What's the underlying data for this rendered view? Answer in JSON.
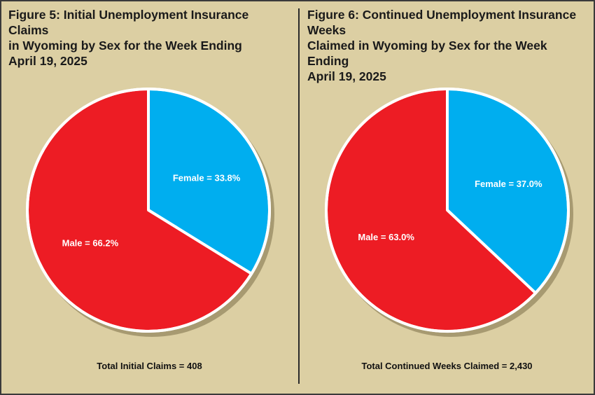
{
  "chart_data": [
    {
      "type": "pie",
      "title": "Figure 5: Initial Unemployment Insurance Claims\nin Wyoming by Sex for the Week Ending\nApril 19, 2025",
      "slices": [
        {
          "label": "Female = 33.8%",
          "value": 33.8,
          "color": "#00aeef"
        },
        {
          "label": "Male = 66.2%",
          "value": 66.2,
          "color": "#ed1c24"
        }
      ],
      "total_label": "Total Initial Claims = 408"
    },
    {
      "type": "pie",
      "title": "Figure 6: Continued Unemployment Insurance Weeks\nClaimed in Wyoming by Sex for the Week Ending\nApril 19, 2025",
      "slices": [
        {
          "label": "Female = 37.0%",
          "value": 37.0,
          "color": "#00aeef"
        },
        {
          "label": "Male = 63.0%",
          "value": 63.0,
          "color": "#ed1c24"
        }
      ],
      "total_label": "Total Continued Weeks Claimed = 2,430"
    }
  ]
}
